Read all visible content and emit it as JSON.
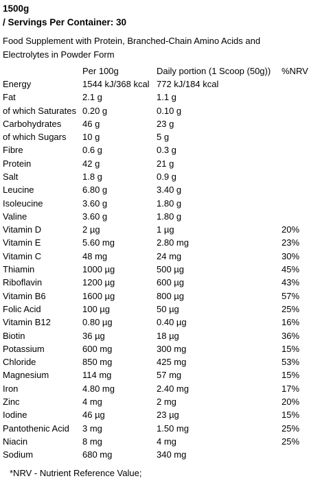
{
  "header": {
    "title": "1500g",
    "subtitle": "/ Servings Per Container: 30"
  },
  "description": "Food Supplement with Protein, Branched-Chain Amino Acids and Electrolytes in Powder Form",
  "table": {
    "columns": [
      "Per 100g",
      "Daily portion (1 Scoop (50g))",
      "%NRV"
    ],
    "rows": [
      [
        "Energy",
        "1544 kJ/368 kcal",
        "772 kJ/184 kcal"
      ],
      [
        "Fat",
        "2.1 g",
        "1.1 g"
      ],
      [
        "of which Saturates",
        "0.20 g",
        "0.10 g"
      ],
      [
        "Carbohydrates",
        "46 g",
        "23 g"
      ],
      [
        "of which Sugars",
        "10 g",
        "5 g"
      ],
      [
        "Fibre",
        "0.6 g",
        "0.3 g"
      ],
      [
        "Protein",
        "42 g",
        "21 g"
      ],
      [
        "Salt",
        "1.8 g",
        "0.9 g"
      ],
      [
        "Leucine",
        "6.80 g",
        "3.40 g"
      ],
      [
        "Isoleucine",
        "3.60 g",
        "1.80 g"
      ],
      [
        "Valine",
        "3.60 g",
        "1.80 g"
      ],
      [
        "Vitamin D",
        "2 µg",
        "1 µg",
        "20%"
      ],
      [
        "Vitamin E",
        "5.60 mg",
        "2.80 mg",
        "23%"
      ],
      [
        "Vitamin C",
        "48 mg",
        "24 mg",
        "30%"
      ],
      [
        "Thiamin",
        "1000 µg",
        "500 µg",
        "45%"
      ],
      [
        "Riboflavin",
        "1200 µg",
        "600 µg",
        "43%"
      ],
      [
        "Vitamin B6",
        "1600 µg",
        "800 µg",
        "57%"
      ],
      [
        "Folic Acid",
        "100 µg",
        "50 µg",
        "25%"
      ],
      [
        "Vitamin B12",
        "0.80 µg",
        "0.40 µg",
        "16%"
      ],
      [
        "Biotin",
        "36 µg",
        "18 µg",
        "36%"
      ],
      [
        "Potassium",
        "600 mg",
        "300 mg",
        "15%"
      ],
      [
        "Chloride",
        "850 mg",
        "425 mg",
        "53%"
      ],
      [
        "Magnesium",
        "114 mg",
        "57 mg",
        "15%"
      ],
      [
        "Iron",
        "4.80 mg",
        "2.40 mg",
        "17%"
      ],
      [
        "Zinc",
        "4 mg",
        "2 mg",
        "20%"
      ],
      [
        "Iodine",
        "46 µg",
        "23 µg",
        "15%"
      ],
      [
        "Pantothenic Acid",
        "3 mg",
        "1.50 mg",
        "25%"
      ],
      [
        "Niacin",
        "8 mg",
        "4 mg",
        "25%"
      ],
      [
        "Sodium",
        "680 mg",
        "340 mg"
      ]
    ]
  },
  "footnote": "*NRV - Nutrient Reference Value;"
}
